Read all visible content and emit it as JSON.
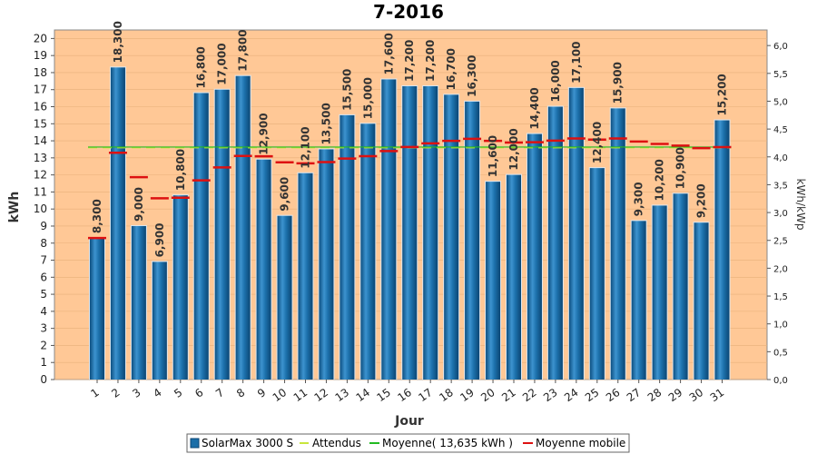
{
  "chart_data": {
    "type": "bar",
    "title": "7-2016",
    "xlabel": "Jour",
    "ylabel": "kWh",
    "ylabel_right": "kWh/kWp",
    "ylim": [
      0,
      20.5
    ],
    "ylim_right": [
      0,
      6.28
    ],
    "y_ticks": [
      "0",
      "1",
      "2",
      "3",
      "4",
      "5",
      "6",
      "7",
      "8",
      "9",
      "10",
      "11",
      "12",
      "13",
      "14",
      "15",
      "16",
      "17",
      "18",
      "19",
      "20"
    ],
    "y_right_ticks": [
      "0,0",
      "0,5",
      "1,0",
      "1,5",
      "2,0",
      "2,5",
      "3,0",
      "3,5",
      "4,0",
      "4,5",
      "5,0",
      "5,5",
      "6,0"
    ],
    "categories": [
      "1",
      "2",
      "3",
      "4",
      "5",
      "6",
      "7",
      "8",
      "9",
      "10",
      "11",
      "12",
      "13",
      "14",
      "15",
      "16",
      "17",
      "18",
      "19",
      "20",
      "21",
      "22",
      "23",
      "24",
      "25",
      "26",
      "27",
      "28",
      "29",
      "30",
      "31"
    ],
    "series": [
      {
        "name": "SolarMax 3000 S",
        "type": "bar",
        "color": "#1a6ea8",
        "values": [
          8.3,
          18.3,
          9.0,
          6.9,
          10.8,
          16.8,
          17.0,
          17.8,
          12.9,
          9.6,
          12.1,
          13.5,
          15.5,
          15.0,
          17.6,
          17.2,
          17.2,
          16.7,
          16.3,
          11.6,
          12.0,
          14.4,
          16.0,
          17.1,
          12.4,
          15.9,
          9.3,
          10.2,
          10.9,
          9.2,
          15.2
        ],
        "labels": [
          "8,300",
          "18,300",
          "9,000",
          "6,900",
          "10,800",
          "16,800",
          "17,000",
          "17,800",
          "12,900",
          "9,600",
          "12,100",
          "13,500",
          "15,500",
          "15,000",
          "17,600",
          "17,200",
          "17,200",
          "16,700",
          "16,300",
          "11,600",
          "12,000",
          "14,400",
          "16,000",
          "17,100",
          "12,400",
          "15,900",
          "9,300",
          "10,200",
          "10,900",
          "9,200",
          "15,200"
        ]
      },
      {
        "name": "Attendus",
        "type": "dashed-line",
        "color": "#c8e63c",
        "values": [
          13.6,
          13.6,
          13.6,
          13.6,
          13.6,
          13.6,
          13.6,
          13.6,
          13.6,
          13.6,
          13.6,
          13.6,
          13.6,
          13.6,
          13.6,
          13.6,
          13.6,
          13.6,
          13.6,
          13.6,
          13.6,
          13.6,
          13.6,
          13.6,
          13.6,
          13.6,
          13.6,
          13.6,
          13.6,
          13.6,
          13.6
        ]
      },
      {
        "name": "Moyenne( 13,635 kWh )",
        "type": "line",
        "color": "#22bb22",
        "values": [
          13.635,
          13.635,
          13.635,
          13.635,
          13.635,
          13.635,
          13.635,
          13.635,
          13.635,
          13.635,
          13.635,
          13.635,
          13.635,
          13.635,
          13.635,
          13.635,
          13.635,
          13.635,
          13.635,
          13.635,
          13.635,
          13.635,
          13.635,
          13.635,
          13.635,
          13.635,
          13.635,
          13.635,
          13.635,
          13.635,
          13.635
        ]
      },
      {
        "name": "Moyenne mobile",
        "type": "dash-marks",
        "color": "#dd1111",
        "values": [
          8.3,
          13.3,
          11.87,
          10.63,
          10.66,
          11.68,
          12.44,
          13.11,
          13.09,
          12.74,
          12.68,
          12.75,
          12.96,
          13.1,
          13.4,
          13.64,
          13.85,
          14.0,
          14.12,
          14.0,
          13.9,
          13.92,
          14.01,
          14.14,
          14.07,
          14.14,
          13.96,
          13.82,
          13.72,
          13.57,
          13.63
        ]
      }
    ],
    "legend_position": "bottom"
  },
  "colors": {
    "plot_bg": "#ffc896",
    "bar_fill": "#1a6ea8",
    "bar_light": "#5aa6d6",
    "attendus": "#c8e63c",
    "moyenne": "#22bb22",
    "mobile": "#dd1111"
  }
}
